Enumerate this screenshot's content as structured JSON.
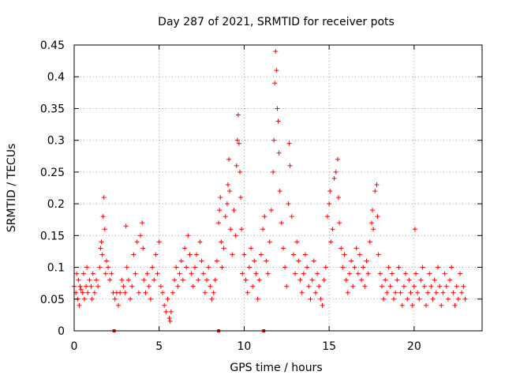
{
  "chart_data": {
    "type": "scatter",
    "title": "Day 287 of 2021, SRMTID for receiver pots",
    "xlabel": "GPS time / hours",
    "ylabel": "SRMTID / TECUs",
    "xlim": [
      0,
      24
    ],
    "ylim": [
      0,
      0.45
    ],
    "xticks": [
      0,
      5,
      10,
      15,
      20
    ],
    "xtick_labels": [
      "0",
      "5",
      "10",
      "15",
      "20"
    ],
    "yticks": [
      0,
      0.05,
      0.1,
      0.15,
      0.2,
      0.25,
      0.3,
      0.35,
      0.4,
      0.45
    ],
    "ytick_labels": [
      "0",
      "0.05",
      "0.1",
      "0.15",
      "0.2",
      "0.25",
      "0.3",
      "0.35",
      "0.4",
      "0.45"
    ],
    "grid": true,
    "marker": "+",
    "color": "#ff0000",
    "series": [
      {
        "name": "SRMTID",
        "points": [
          [
            0.0,
            0.07
          ],
          [
            0.1,
            0.06
          ],
          [
            0.15,
            0.09
          ],
          [
            0.2,
            0.05
          ],
          [
            0.25,
            0.08
          ],
          [
            0.3,
            0.04
          ],
          [
            0.35,
            0.07
          ],
          [
            0.4,
            0.065
          ],
          [
            0.5,
            0.06
          ],
          [
            0.55,
            0.09
          ],
          [
            0.6,
            0.05
          ],
          [
            0.7,
            0.07
          ],
          [
            0.75,
            0.1
          ],
          [
            0.8,
            0.06
          ],
          [
            0.9,
            0.08
          ],
          [
            1.0,
            0.07
          ],
          [
            1.05,
            0.05
          ],
          [
            1.1,
            0.09
          ],
          [
            1.2,
            0.06
          ],
          [
            1.3,
            0.08
          ],
          [
            1.4,
            0.07
          ],
          [
            1.5,
            0.1
          ],
          [
            1.55,
            0.13
          ],
          [
            1.6,
            0.14
          ],
          [
            1.65,
            0.12
          ],
          [
            1.7,
            0.18
          ],
          [
            1.75,
            0.21
          ],
          [
            1.8,
            0.16
          ],
          [
            1.85,
            0.09
          ],
          [
            1.9,
            0.11
          ],
          [
            2.0,
            0.1
          ],
          [
            2.1,
            0.08
          ],
          [
            2.2,
            0.09
          ],
          [
            2.3,
            0.06
          ],
          [
            2.4,
            0.05
          ],
          [
            2.5,
            0.06
          ],
          [
            2.6,
            0.04
          ],
          [
            2.7,
            0.06
          ],
          [
            2.8,
            0.08
          ],
          [
            2.9,
            0.07
          ],
          [
            3.0,
            0.06
          ],
          [
            3.05,
            0.165
          ],
          [
            3.1,
            0.1
          ],
          [
            3.2,
            0.08
          ],
          [
            3.3,
            0.05
          ],
          [
            3.4,
            0.07
          ],
          [
            3.5,
            0.12
          ],
          [
            3.6,
            0.09
          ],
          [
            3.7,
            0.14
          ],
          [
            3.8,
            0.06
          ],
          [
            3.9,
            0.15
          ],
          [
            4.0,
            0.17
          ],
          [
            4.05,
            0.13
          ],
          [
            4.1,
            0.08
          ],
          [
            4.2,
            0.06
          ],
          [
            4.3,
            0.09
          ],
          [
            4.4,
            0.07
          ],
          [
            4.5,
            0.05
          ],
          [
            4.6,
            0.1
          ],
          [
            4.7,
            0.08
          ],
          [
            4.8,
            0.12
          ],
          [
            4.9,
            0.09
          ],
          [
            5.0,
            0.14
          ],
          [
            5.1,
            0.07
          ],
          [
            5.2,
            0.06
          ],
          [
            5.3,
            0.04
          ],
          [
            5.4,
            0.03
          ],
          [
            5.5,
            0.05
          ],
          [
            5.6,
            0.02
          ],
          [
            5.65,
            0.015
          ],
          [
            5.7,
            0.03
          ],
          [
            5.8,
            0.06
          ],
          [
            5.9,
            0.08
          ],
          [
            6.0,
            0.1
          ],
          [
            6.1,
            0.07
          ],
          [
            6.2,
            0.09
          ],
          [
            6.3,
            0.11
          ],
          [
            6.4,
            0.08
          ],
          [
            6.5,
            0.13
          ],
          [
            6.6,
            0.1
          ],
          [
            6.7,
            0.15
          ],
          [
            6.8,
            0.12
          ],
          [
            6.9,
            0.09
          ],
          [
            7.0,
            0.07
          ],
          [
            7.1,
            0.1
          ],
          [
            7.2,
            0.12
          ],
          [
            7.3,
            0.08
          ],
          [
            7.4,
            0.14
          ],
          [
            7.5,
            0.11
          ],
          [
            7.6,
            0.09
          ],
          [
            7.7,
            0.06
          ],
          [
            7.8,
            0.08
          ],
          [
            7.9,
            0.1
          ],
          [
            8.0,
            0.07
          ],
          [
            8.1,
            0.05
          ],
          [
            8.2,
            0.06
          ],
          [
            8.3,
            0.08
          ],
          [
            8.4,
            0.11
          ],
          [
            8.5,
            0.17
          ],
          [
            8.55,
            0.19
          ],
          [
            8.6,
            0.21
          ],
          [
            8.65,
            0.14
          ],
          [
            8.7,
            0.1
          ],
          [
            8.8,
            0.13
          ],
          [
            8.9,
            0.18
          ],
          [
            9.0,
            0.2
          ],
          [
            9.05,
            0.23
          ],
          [
            9.1,
            0.27
          ],
          [
            9.15,
            0.22
          ],
          [
            9.2,
            0.16
          ],
          [
            9.3,
            0.12
          ],
          [
            9.4,
            0.19
          ],
          [
            9.5,
            0.15
          ],
          [
            9.55,
            0.26
          ],
          [
            9.6,
            0.3
          ],
          [
            9.65,
            0.34
          ],
          [
            9.7,
            0.295
          ],
          [
            9.75,
            0.25
          ],
          [
            9.8,
            0.21
          ],
          [
            9.85,
            0.16
          ],
          [
            9.9,
            0.09
          ],
          [
            10.0,
            0.12
          ],
          [
            10.1,
            0.08
          ],
          [
            10.2,
            0.06
          ],
          [
            10.3,
            0.1
          ],
          [
            10.4,
            0.13
          ],
          [
            10.5,
            0.07
          ],
          [
            10.6,
            0.11
          ],
          [
            10.7,
            0.09
          ],
          [
            10.8,
            0.05
          ],
          [
            10.9,
            0.08
          ],
          [
            11.0,
            0.12
          ],
          [
            11.1,
            0.16
          ],
          [
            11.2,
            0.18
          ],
          [
            11.3,
            0.11
          ],
          [
            11.4,
            0.09
          ],
          [
            11.5,
            0.14
          ],
          [
            11.6,
            0.19
          ],
          [
            11.7,
            0.25
          ],
          [
            11.75,
            0.3
          ],
          [
            11.8,
            0.39
          ],
          [
            11.85,
            0.44
          ],
          [
            11.9,
            0.41
          ],
          [
            11.95,
            0.35
          ],
          [
            12.0,
            0.33
          ],
          [
            12.05,
            0.28
          ],
          [
            12.1,
            0.22
          ],
          [
            12.2,
            0.17
          ],
          [
            12.3,
            0.13
          ],
          [
            12.4,
            0.1
          ],
          [
            12.5,
            0.07
          ],
          [
            12.6,
            0.2
          ],
          [
            12.65,
            0.295
          ],
          [
            12.7,
            0.26
          ],
          [
            12.8,
            0.18
          ],
          [
            12.9,
            0.12
          ],
          [
            13.0,
            0.09
          ],
          [
            13.1,
            0.14
          ],
          [
            13.2,
            0.11
          ],
          [
            13.3,
            0.08
          ],
          [
            13.4,
            0.06
          ],
          [
            13.5,
            0.09
          ],
          [
            13.6,
            0.12
          ],
          [
            13.7,
            0.1
          ],
          [
            13.8,
            0.07
          ],
          [
            13.9,
            0.05
          ],
          [
            14.0,
            0.08
          ],
          [
            14.1,
            0.11
          ],
          [
            14.2,
            0.06
          ],
          [
            14.3,
            0.09
          ],
          [
            14.4,
            0.07
          ],
          [
            14.5,
            0.05
          ],
          [
            14.6,
            0.04
          ],
          [
            14.7,
            0.08
          ],
          [
            14.8,
            0.1
          ],
          [
            14.9,
            0.18
          ],
          [
            15.0,
            0.2
          ],
          [
            15.05,
            0.22
          ],
          [
            15.1,
            0.14
          ],
          [
            15.2,
            0.16
          ],
          [
            15.3,
            0.24
          ],
          [
            15.4,
            0.25
          ],
          [
            15.5,
            0.27
          ],
          [
            15.55,
            0.21
          ],
          [
            15.6,
            0.17
          ],
          [
            15.7,
            0.13
          ],
          [
            15.8,
            0.1
          ],
          [
            15.9,
            0.12
          ],
          [
            16.0,
            0.08
          ],
          [
            16.1,
            0.06
          ],
          [
            16.2,
            0.09
          ],
          [
            16.3,
            0.11
          ],
          [
            16.4,
            0.07
          ],
          [
            16.5,
            0.1
          ],
          [
            16.6,
            0.13
          ],
          [
            16.7,
            0.09
          ],
          [
            16.8,
            0.12
          ],
          [
            16.9,
            0.08
          ],
          [
            17.0,
            0.1
          ],
          [
            17.1,
            0.07
          ],
          [
            17.2,
            0.11
          ],
          [
            17.3,
            0.09
          ],
          [
            17.4,
            0.14
          ],
          [
            17.5,
            0.17
          ],
          [
            17.55,
            0.19
          ],
          [
            17.6,
            0.16
          ],
          [
            17.7,
            0.22
          ],
          [
            17.8,
            0.23
          ],
          [
            17.85,
            0.18
          ],
          [
            17.9,
            0.12
          ],
          [
            18.0,
            0.09
          ],
          [
            18.1,
            0.07
          ],
          [
            18.2,
            0.05
          ],
          [
            18.3,
            0.08
          ],
          [
            18.4,
            0.06
          ],
          [
            18.5,
            0.1
          ],
          [
            18.6,
            0.07
          ],
          [
            18.7,
            0.09
          ],
          [
            18.8,
            0.05
          ],
          [
            18.9,
            0.06
          ],
          [
            19.0,
            0.08
          ],
          [
            19.1,
            0.1
          ],
          [
            19.2,
            0.06
          ],
          [
            19.3,
            0.04
          ],
          [
            19.4,
            0.07
          ],
          [
            19.5,
            0.09
          ],
          [
            19.6,
            0.05
          ],
          [
            19.7,
            0.08
          ],
          [
            19.8,
            0.06
          ],
          [
            19.9,
            0.04
          ],
          [
            20.0,
            0.07
          ],
          [
            20.05,
            0.16
          ],
          [
            20.1,
            0.09
          ],
          [
            20.2,
            0.06
          ],
          [
            20.3,
            0.05
          ],
          [
            20.4,
            0.08
          ],
          [
            20.5,
            0.1
          ],
          [
            20.6,
            0.07
          ],
          [
            20.7,
            0.04
          ],
          [
            20.8,
            0.06
          ],
          [
            20.9,
            0.09
          ],
          [
            21.0,
            0.07
          ],
          [
            21.1,
            0.05
          ],
          [
            21.2,
            0.08
          ],
          [
            21.3,
            0.06
          ],
          [
            21.4,
            0.1
          ],
          [
            21.5,
            0.07
          ],
          [
            21.6,
            0.04
          ],
          [
            21.7,
            0.06
          ],
          [
            21.8,
            0.09
          ],
          [
            21.9,
            0.07
          ],
          [
            22.0,
            0.05
          ],
          [
            22.1,
            0.08
          ],
          [
            22.2,
            0.1
          ],
          [
            22.3,
            0.06
          ],
          [
            22.4,
            0.04
          ],
          [
            22.5,
            0.07
          ],
          [
            22.6,
            0.05
          ],
          [
            22.7,
            0.09
          ],
          [
            22.8,
            0.06
          ],
          [
            22.9,
            0.07
          ],
          [
            23.0,
            0.05
          ]
        ]
      }
    ],
    "gaps": [
      2.35,
      8.5,
      11.15
    ]
  }
}
